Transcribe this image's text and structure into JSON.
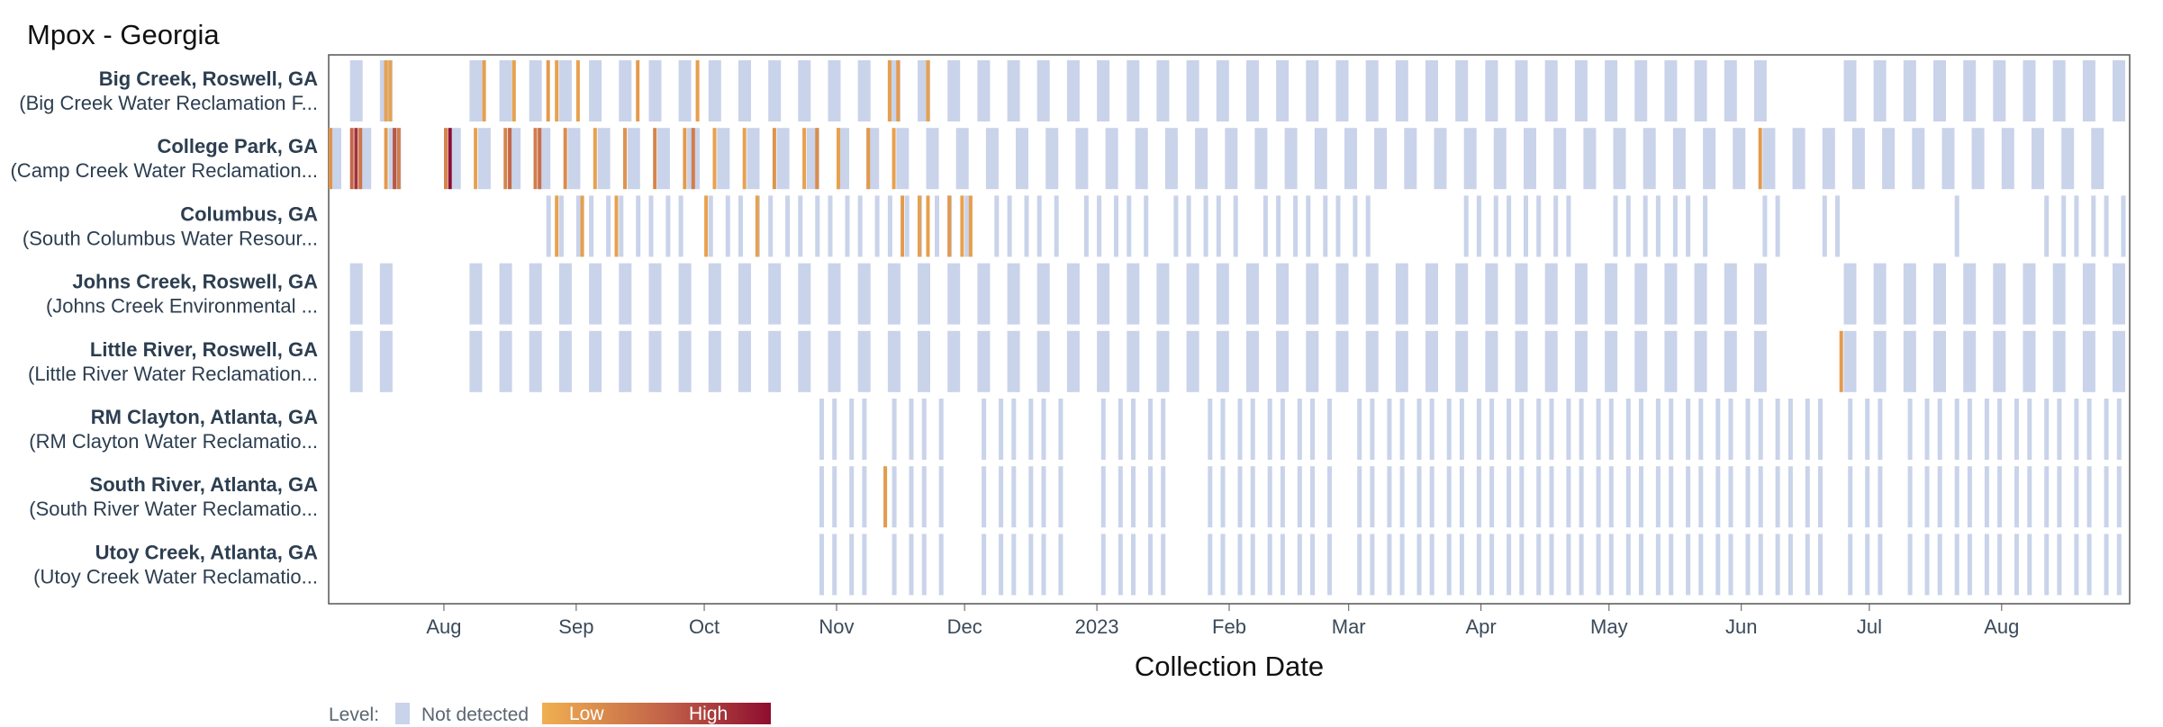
{
  "chart_data": {
    "type": "heatmap",
    "title": "Mpox - Georgia",
    "xlabel": "Collection Date",
    "x_range": [
      "2022-07-05",
      "2023-08-31"
    ],
    "x_ticks": [
      {
        "date": "2022-08-01",
        "label": "Aug"
      },
      {
        "date": "2022-09-01",
        "label": "Sep"
      },
      {
        "date": "2022-10-01",
        "label": "Oct"
      },
      {
        "date": "2022-11-01",
        "label": "Nov"
      },
      {
        "date": "2022-12-01",
        "label": "Dec"
      },
      {
        "date": "2023-01-01",
        "label": "2023"
      },
      {
        "date": "2023-02-01",
        "label": "Feb"
      },
      {
        "date": "2023-03-01",
        "label": "Mar"
      },
      {
        "date": "2023-04-01",
        "label": "Apr"
      },
      {
        "date": "2023-05-01",
        "label": "May"
      },
      {
        "date": "2023-06-01",
        "label": "Jun"
      },
      {
        "date": "2023-07-01",
        "label": "Jul"
      },
      {
        "date": "2023-08-01",
        "label": "Aug"
      }
    ],
    "colors": {
      "not_detected": "#c9d3ea",
      "low": "#f0b050",
      "high": "#8e0d2e",
      "frame": "#555555",
      "text": "#2c3e50"
    },
    "legend": {
      "label": "Level:",
      "not_detected": "Not detected",
      "low": "Low",
      "high": "High",
      "position": "bottom-left"
    },
    "sites": [
      {
        "name": "Big Creek, Roswell, GA",
        "facility": "(Big Creek Water Reclamation F...",
        "sampling": "weekly",
        "coverage": [
          [
            "2022-07-10",
            "2023-08-31"
          ]
        ],
        "gaps": [
          [
            "2022-07-24",
            "2022-08-01"
          ],
          [
            "2023-06-10",
            "2023-06-20"
          ]
        ],
        "detections": [
          {
            "date": "2022-07-18",
            "level": 0.1
          },
          {
            "date": "2022-07-19",
            "level": 0.1
          },
          {
            "date": "2022-08-10",
            "level": 0.12
          },
          {
            "date": "2022-08-17",
            "level": 0.1
          },
          {
            "date": "2022-08-25",
            "level": 0.15
          },
          {
            "date": "2022-08-27",
            "level": 0.1
          },
          {
            "date": "2022-09-01",
            "level": 0.1
          },
          {
            "date": "2022-09-15",
            "level": 0.15
          },
          {
            "date": "2022-09-29",
            "level": 0.12
          },
          {
            "date": "2022-11-13",
            "level": 0.12
          },
          {
            "date": "2022-11-15",
            "level": 0.15
          },
          {
            "date": "2022-11-22",
            "level": 0.1
          }
        ]
      },
      {
        "name": "College Park, GA",
        "facility": "(Camp Creek Water Reclamation...",
        "sampling": "weekly",
        "coverage": [
          [
            "2022-07-05",
            "2023-08-31"
          ]
        ],
        "gaps": [
          [
            "2022-07-22",
            "2022-08-01"
          ]
        ],
        "detections": [
          {
            "date": "2022-07-05",
            "level": 0.2
          },
          {
            "date": "2022-07-10",
            "level": 0.5
          },
          {
            "date": "2022-07-11",
            "level": 0.8
          },
          {
            "date": "2022-07-12",
            "level": 0.4
          },
          {
            "date": "2022-07-18",
            "level": 0.15
          },
          {
            "date": "2022-07-20",
            "level": 0.6
          },
          {
            "date": "2022-07-21",
            "level": 0.35
          },
          {
            "date": "2022-08-01",
            "level": 0.3
          },
          {
            "date": "2022-08-02",
            "level": 1.0
          },
          {
            "date": "2022-08-08",
            "level": 0.1
          },
          {
            "date": "2022-08-15",
            "level": 0.3
          },
          {
            "date": "2022-08-16",
            "level": 0.5
          },
          {
            "date": "2022-08-22",
            "level": 0.35
          },
          {
            "date": "2022-08-23",
            "level": 0.45
          },
          {
            "date": "2022-08-29",
            "level": 0.25
          },
          {
            "date": "2022-09-05",
            "level": 0.1
          },
          {
            "date": "2022-09-12",
            "level": 0.2
          },
          {
            "date": "2022-09-19",
            "level": 0.3
          },
          {
            "date": "2022-09-26",
            "level": 0.15
          },
          {
            "date": "2022-09-28",
            "level": 0.35
          },
          {
            "date": "2022-10-03",
            "level": 0.1
          },
          {
            "date": "2022-10-10",
            "level": 0.1
          },
          {
            "date": "2022-10-17",
            "level": 0.2
          },
          {
            "date": "2022-10-24",
            "level": 0.1
          },
          {
            "date": "2022-10-27",
            "level": 0.25
          },
          {
            "date": "2022-11-01",
            "level": 0.1
          },
          {
            "date": "2022-11-08",
            "level": 0.15
          },
          {
            "date": "2022-11-14",
            "level": 0.1
          },
          {
            "date": "2023-06-05",
            "level": 0.15
          }
        ]
      },
      {
        "name": "Columbus, GA",
        "facility": "(South Columbus Water Resour...",
        "sampling": "twice-weekly",
        "coverage": [
          [
            "2022-08-25",
            "2023-03-05"
          ],
          [
            "2023-03-28",
            "2023-08-31"
          ]
        ],
        "gaps": [
          [
            "2022-09-28",
            "2022-10-01"
          ],
          [
            "2022-12-03",
            "2022-12-07"
          ],
          [
            "2022-12-25",
            "2022-12-29"
          ],
          [
            "2023-01-15",
            "2023-01-19"
          ],
          [
            "2023-02-05",
            "2023-02-09"
          ],
          [
            "2023-04-25",
            "2023-05-01"
          ],
          [
            "2023-05-24",
            "2023-06-03"
          ],
          [
            "2023-06-12",
            "2023-06-17"
          ],
          [
            "2023-06-26",
            "2023-07-20"
          ],
          [
            "2023-07-24",
            "2023-07-29"
          ],
          [
            "2023-08-01",
            "2023-08-10"
          ]
        ],
        "detections": [
          {
            "date": "2022-08-27",
            "level": 0.1
          },
          {
            "date": "2022-09-02",
            "level": 0.12
          },
          {
            "date": "2022-09-10",
            "level": 0.1
          },
          {
            "date": "2022-10-01",
            "level": 0.1
          },
          {
            "date": "2022-10-13",
            "level": 0.1
          },
          {
            "date": "2022-11-16",
            "level": 0.15
          },
          {
            "date": "2022-11-20",
            "level": 0.1
          },
          {
            "date": "2022-11-22",
            "level": 0.12
          },
          {
            "date": "2022-11-27",
            "level": 0.15
          },
          {
            "date": "2022-11-30",
            "level": 0.1
          },
          {
            "date": "2022-12-02",
            "level": 0.12
          }
        ]
      },
      {
        "name": "Johns Creek, Roswell, GA",
        "facility": "(Johns Creek Environmental ...",
        "sampling": "weekly",
        "coverage": [
          [
            "2022-07-10",
            "2023-08-31"
          ]
        ],
        "gaps": [
          [
            "2022-07-24",
            "2022-08-01"
          ],
          [
            "2023-06-10",
            "2023-06-20"
          ]
        ],
        "detections": []
      },
      {
        "name": "Little River, Roswell, GA",
        "facility": "(Little River Water Reclamation...",
        "sampling": "weekly",
        "coverage": [
          [
            "2022-07-10",
            "2023-08-31"
          ]
        ],
        "gaps": [
          [
            "2022-07-24",
            "2022-08-01"
          ],
          [
            "2023-06-10",
            "2023-06-20"
          ]
        ],
        "detections": [
          {
            "date": "2023-06-24",
            "level": 0.15
          }
        ]
      },
      {
        "name": "RM Clayton, Atlanta, GA",
        "facility": "(RM Clayton Water Reclamatio...",
        "sampling": "twice-weekly",
        "coverage": [
          [
            "2022-10-28",
            "2023-08-31"
          ]
        ],
        "gaps": [
          [
            "2022-11-10",
            "2022-11-14"
          ],
          [
            "2022-11-26",
            "2022-12-03"
          ],
          [
            "2022-12-26",
            "2022-12-31"
          ],
          [
            "2023-01-20",
            "2023-01-24"
          ],
          [
            "2023-02-26",
            "2023-03-01"
          ],
          [
            "2023-05-30",
            "2023-06-01"
          ],
          [
            "2023-06-20",
            "2023-06-24"
          ],
          [
            "2023-07-05",
            "2023-07-09"
          ]
        ],
        "detections": []
      },
      {
        "name": "South River, Atlanta, GA",
        "facility": "(South River Water Reclamatio...",
        "sampling": "twice-weekly",
        "coverage": [
          [
            "2022-10-28",
            "2023-08-31"
          ]
        ],
        "gaps": [
          [
            "2022-11-10",
            "2022-11-14"
          ],
          [
            "2022-11-26",
            "2022-12-03"
          ],
          [
            "2022-12-26",
            "2022-12-31"
          ],
          [
            "2023-01-20",
            "2023-01-24"
          ],
          [
            "2023-02-26",
            "2023-03-01"
          ],
          [
            "2023-05-30",
            "2023-06-01"
          ],
          [
            "2023-06-20",
            "2023-06-24"
          ],
          [
            "2023-07-05",
            "2023-07-09"
          ]
        ],
        "detections": [
          {
            "date": "2022-11-12",
            "level": 0.15
          }
        ]
      },
      {
        "name": "Utoy Creek, Atlanta, GA",
        "facility": "(Utoy Creek Water Reclamatio...",
        "sampling": "twice-weekly",
        "coverage": [
          [
            "2022-10-28",
            "2023-08-31"
          ]
        ],
        "gaps": [
          [
            "2022-11-10",
            "2022-11-14"
          ],
          [
            "2022-11-26",
            "2022-12-03"
          ],
          [
            "2022-12-26",
            "2022-12-31"
          ],
          [
            "2023-01-20",
            "2023-01-24"
          ],
          [
            "2023-02-26",
            "2023-03-01"
          ],
          [
            "2023-05-30",
            "2023-06-01"
          ],
          [
            "2023-06-20",
            "2023-06-24"
          ],
          [
            "2023-07-05",
            "2023-07-09"
          ]
        ],
        "detections": []
      }
    ]
  }
}
